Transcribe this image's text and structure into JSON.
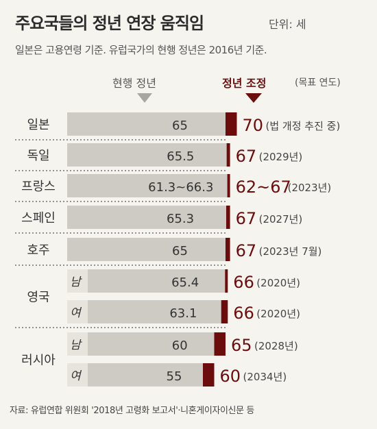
{
  "header": {
    "title": "주요국들의 정년 연장 움직임",
    "unit": "단위: 세",
    "subtitle": "일본은 고용연령 기준. 유럽국가의 현행 정년은 2016년 기준."
  },
  "columns": {
    "current": "현행 정년",
    "adjusted": "정년 조정",
    "adjusted_sub": "(목표 연도)"
  },
  "source": "자료: 유럽연합 위원회 '2018년 고령화 보고서'·니혼게이자이신문 등",
  "colors": {
    "bar_gray": "#cdcbc4",
    "bar_dark": "#6b0d0d",
    "label_bg": "#e6e4dd",
    "text_dark": "#6b0d0d"
  },
  "chart_data": {
    "type": "table",
    "series": [
      {
        "name": "현행 정년"
      },
      {
        "name": "정년 조정"
      }
    ],
    "rows": [
      {
        "country": "일본",
        "sex": "",
        "current": "65",
        "target": "70",
        "target_value": 70,
        "note": "(법 개정 추진 중)"
      },
      {
        "country": "독일",
        "sex": "",
        "current": "65.5",
        "target": "67",
        "target_value": 67,
        "note": "(2029년)"
      },
      {
        "country": "프랑스",
        "sex": "",
        "current": "61.3~66.3",
        "target": "62~67",
        "target_value": 67,
        "note": "(2023년)"
      },
      {
        "country": "스페인",
        "sex": "",
        "current": "65.3",
        "target": "67",
        "target_value": 67,
        "note": "(2027년)"
      },
      {
        "country": "호주",
        "sex": "",
        "current": "65",
        "target": "67",
        "target_value": 67,
        "note": "(2023년 7월)"
      },
      {
        "country": "영국",
        "sex": "남",
        "current": "65.4",
        "target": "66",
        "target_value": 66,
        "note": "(2020년)"
      },
      {
        "country": "",
        "sex": "여",
        "current": "63.1",
        "target": "66",
        "target_value": 66,
        "note": "(2020년)"
      },
      {
        "country": "러시아",
        "sex": "남",
        "current": "60",
        "target": "65",
        "target_value": 65,
        "note": "(2028년)"
      },
      {
        "country": "",
        "sex": "여",
        "current": "55",
        "target": "60",
        "target_value": 60,
        "note": "(2034년)"
      }
    ]
  }
}
